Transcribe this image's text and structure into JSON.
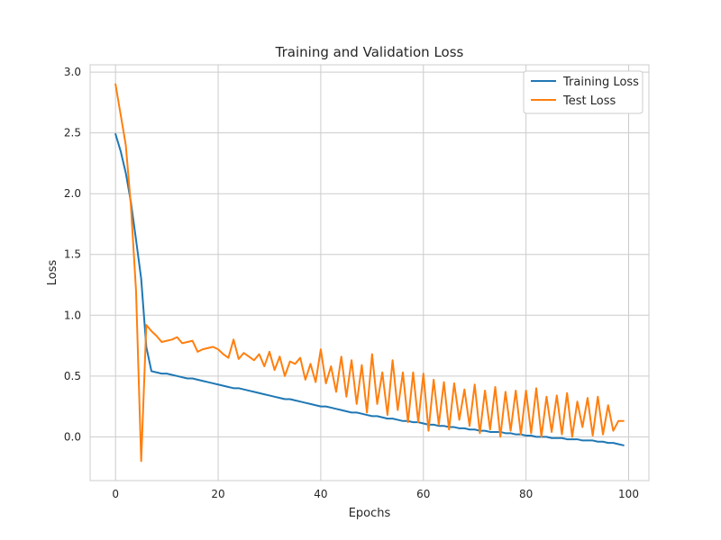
{
  "chart_data": {
    "type": "line",
    "title": "Training and Validation Loss",
    "xlabel": "Epochs",
    "ylabel": "Loss",
    "xlim": [
      -4.95,
      103.95
    ],
    "ylim": [
      -0.36,
      3.06
    ],
    "xticks": [
      0,
      20,
      40,
      60,
      80,
      100
    ],
    "yticks": [
      0.0,
      0.5,
      1.0,
      1.5,
      2.0,
      2.5,
      3.0
    ],
    "xtick_labels": [
      "0",
      "20",
      "40",
      "60",
      "80",
      "100"
    ],
    "ytick_labels": [
      "0.0",
      "0.5",
      "1.0",
      "1.5",
      "2.0",
      "2.5",
      "3.0"
    ],
    "grid": true,
    "legend_position": "top-right",
    "x": [
      0,
      1,
      2,
      3,
      4,
      5,
      6,
      7,
      8,
      9,
      10,
      11,
      12,
      13,
      14,
      15,
      16,
      17,
      18,
      19,
      20,
      21,
      22,
      23,
      24,
      25,
      26,
      27,
      28,
      29,
      30,
      31,
      32,
      33,
      34,
      35,
      36,
      37,
      38,
      39,
      40,
      41,
      42,
      43,
      44,
      45,
      46,
      47,
      48,
      49,
      50,
      51,
      52,
      53,
      54,
      55,
      56,
      57,
      58,
      59,
      60,
      61,
      62,
      63,
      64,
      65,
      66,
      67,
      68,
      69,
      70,
      71,
      72,
      73,
      74,
      75,
      76,
      77,
      78,
      79,
      80,
      81,
      82,
      83,
      84,
      85,
      86,
      87,
      88,
      89,
      90,
      91,
      92,
      93,
      94,
      95,
      96,
      97,
      98,
      99
    ],
    "series": [
      {
        "name": "Training Loss",
        "color": "#1f77b4",
        "values": [
          2.49,
          2.35,
          2.17,
          1.93,
          1.62,
          1.3,
          0.74,
          0.54,
          0.53,
          0.52,
          0.52,
          0.51,
          0.5,
          0.49,
          0.48,
          0.48,
          0.47,
          0.46,
          0.45,
          0.44,
          0.43,
          0.42,
          0.41,
          0.4,
          0.4,
          0.39,
          0.38,
          0.37,
          0.36,
          0.35,
          0.34,
          0.33,
          0.32,
          0.31,
          0.31,
          0.3,
          0.29,
          0.28,
          0.27,
          0.26,
          0.25,
          0.25,
          0.24,
          0.23,
          0.22,
          0.21,
          0.2,
          0.2,
          0.19,
          0.18,
          0.17,
          0.17,
          0.16,
          0.15,
          0.15,
          0.14,
          0.13,
          0.13,
          0.12,
          0.12,
          0.11,
          0.1,
          0.1,
          0.09,
          0.09,
          0.08,
          0.08,
          0.07,
          0.07,
          0.06,
          0.06,
          0.05,
          0.05,
          0.04,
          0.04,
          0.04,
          0.03,
          0.03,
          0.02,
          0.02,
          0.01,
          0.01,
          0.0,
          0.0,
          0.0,
          -0.01,
          -0.01,
          -0.01,
          -0.02,
          -0.02,
          -0.02,
          -0.03,
          -0.03,
          -0.03,
          -0.04,
          -0.04,
          -0.05,
          -0.05,
          -0.06,
          -0.07
        ]
      },
      {
        "name": "Test Loss",
        "color": "#ff7f0e",
        "values": [
          2.9,
          2.65,
          2.4,
          1.9,
          1.2,
          -0.2,
          0.92,
          0.87,
          0.83,
          0.78,
          0.79,
          0.8,
          0.82,
          0.77,
          0.78,
          0.79,
          0.7,
          0.72,
          0.73,
          0.74,
          0.72,
          0.68,
          0.65,
          0.8,
          0.64,
          0.69,
          0.66,
          0.63,
          0.68,
          0.58,
          0.7,
          0.55,
          0.66,
          0.5,
          0.62,
          0.6,
          0.65,
          0.47,
          0.6,
          0.45,
          0.72,
          0.44,
          0.58,
          0.37,
          0.66,
          0.33,
          0.63,
          0.27,
          0.59,
          0.2,
          0.68,
          0.27,
          0.53,
          0.18,
          0.63,
          0.22,
          0.53,
          0.12,
          0.53,
          0.12,
          0.52,
          0.05,
          0.47,
          0.1,
          0.45,
          0.06,
          0.44,
          0.14,
          0.39,
          0.09,
          0.43,
          0.03,
          0.38,
          0.06,
          0.41,
          0.0,
          0.37,
          0.05,
          0.38,
          0.02,
          0.38,
          0.03,
          0.4,
          0.0,
          0.33,
          0.04,
          0.34,
          0.02,
          0.36,
          0.0,
          0.29,
          0.08,
          0.32,
          0.01,
          0.33,
          0.02,
          0.26,
          0.05,
          0.13,
          0.13
        ]
      }
    ]
  }
}
